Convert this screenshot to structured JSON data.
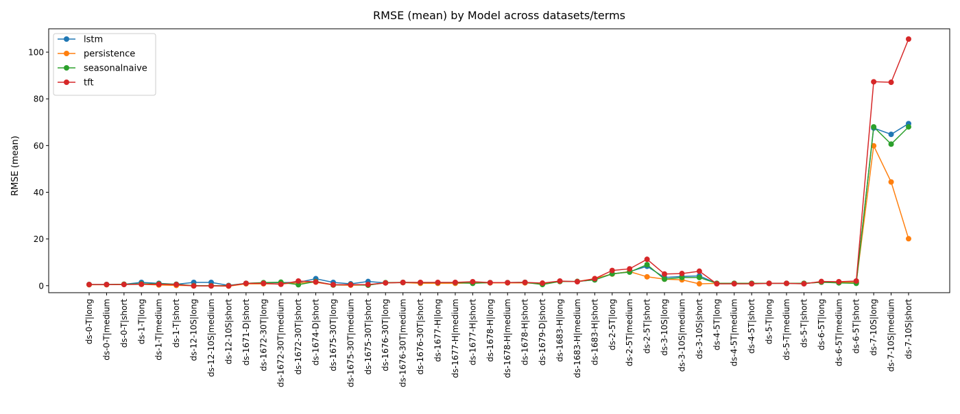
{
  "chart_data": {
    "type": "line",
    "title": "RMSE (mean) by Model across datasets/terms",
    "xlabel": "",
    "ylabel": "RMSE (mean)",
    "ylim": [
      -3,
      110
    ],
    "yticks": [
      0,
      20,
      40,
      60,
      80,
      100
    ],
    "grid": false,
    "legend_position": "upper-left",
    "categories": [
      "ds-0-T|long",
      "ds-0-T|medium",
      "ds-0-T|short",
      "ds-1-T|long",
      "ds-1-T|medium",
      "ds-1-T|short",
      "ds-12-10S|long",
      "ds-12-10S|medium",
      "ds-12-10S|short",
      "ds-1671-D|short",
      "ds-1672-30T|long",
      "ds-1672-30T|medium",
      "ds-1672-30T|short",
      "ds-1674-D|short",
      "ds-1675-30T|long",
      "ds-1675-30T|medium",
      "ds-1675-30T|short",
      "ds-1676-30T|long",
      "ds-1676-30T|medium",
      "ds-1676-30T|short",
      "ds-1677-H|long",
      "ds-1677-H|medium",
      "ds-1677-H|short",
      "ds-1678-H|long",
      "ds-1678-H|medium",
      "ds-1678-H|short",
      "ds-1679-D|short",
      "ds-1683-H|long",
      "ds-1683-H|medium",
      "ds-1683-H|short",
      "ds-2-5T|long",
      "ds-2-5T|medium",
      "ds-2-5T|short",
      "ds-3-10S|long",
      "ds-3-10S|medium",
      "ds-3-10S|short",
      "ds-4-5T|long",
      "ds-4-5T|medium",
      "ds-4-5T|short",
      "ds-5-T|long",
      "ds-5-T|medium",
      "ds-5-T|short",
      "ds-6-5T|long",
      "ds-6-5T|medium",
      "ds-6-5T|short",
      "ds-7-10S|long",
      "ds-7-10S|medium",
      "ds-7-10S|short"
    ],
    "series": [
      {
        "name": "lstm",
        "color": "#1f77b4",
        "values": [
          0.5,
          0.5,
          0.6,
          1.4,
          1.0,
          0.6,
          1.4,
          1.4,
          0.1,
          1.0,
          1.2,
          1.3,
          1.4,
          3.0,
          1.4,
          0.8,
          1.8,
          1.2,
          1.3,
          1.3,
          1.3,
          1.3,
          1.5,
          1.3,
          1.3,
          1.4,
          0.8,
          1.8,
          1.8,
          2.5,
          5.0,
          6.0,
          8.3,
          3.5,
          4.0,
          4.2,
          1.0,
          1.0,
          1.0,
          1.0,
          1.0,
          1.0,
          1.5,
          1.4,
          1.4,
          67.5,
          64.8,
          69.4
        ]
      },
      {
        "name": "persistence",
        "color": "#ff7f0e",
        "values": [
          0.4,
          0.4,
          0.6,
          0.6,
          0.3,
          0.1,
          0.0,
          -0.1,
          -0.2,
          0.8,
          0.8,
          0.8,
          1.2,
          1.5,
          0.3,
          0.2,
          0.3,
          1.2,
          1.3,
          1.0,
          1.0,
          1.0,
          1.2,
          1.2,
          1.2,
          1.2,
          0.9,
          1.8,
          1.8,
          3.0,
          5.0,
          6.0,
          3.8,
          2.8,
          2.5,
          0.8,
          1.0,
          1.0,
          1.0,
          1.0,
          1.0,
          1.0,
          1.5,
          1.4,
          1.4,
          59.9,
          44.4,
          20.1
        ]
      },
      {
        "name": "seasonalnaive",
        "color": "#2ca02c",
        "values": [
          0.5,
          0.5,
          0.6,
          0.8,
          0.8,
          0.6,
          0.0,
          0.0,
          0.0,
          1.0,
          1.3,
          1.5,
          0.4,
          1.8,
          0.3,
          0.5,
          0.2,
          1.3,
          1.4,
          1.3,
          1.3,
          1.3,
          1.0,
          1.3,
          1.3,
          1.4,
          0.5,
          1.8,
          1.8,
          2.5,
          5.1,
          5.8,
          9.0,
          2.8,
          3.5,
          3.5,
          1.0,
          1.0,
          1.0,
          1.0,
          1.0,
          1.0,
          1.5,
          1.2,
          1.0,
          68.0,
          60.6,
          68.0
        ]
      },
      {
        "name": "tft",
        "color": "#d62728",
        "values": [
          0.5,
          0.5,
          0.5,
          0.6,
          0.6,
          0.5,
          -0.1,
          -0.1,
          -0.1,
          1.0,
          1.0,
          0.6,
          2.0,
          1.6,
          0.4,
          0.4,
          0.5,
          1.2,
          1.4,
          1.4,
          1.4,
          1.4,
          1.7,
          1.3,
          1.3,
          1.4,
          1.1,
          2.0,
          1.7,
          3.0,
          6.5,
          7.2,
          11.3,
          5.0,
          5.2,
          6.2,
          0.8,
          0.8,
          0.8,
          1.0,
          1.0,
          0.8,
          1.8,
          1.7,
          2.0,
          87.3,
          87.1,
          105.6
        ]
      }
    ]
  }
}
